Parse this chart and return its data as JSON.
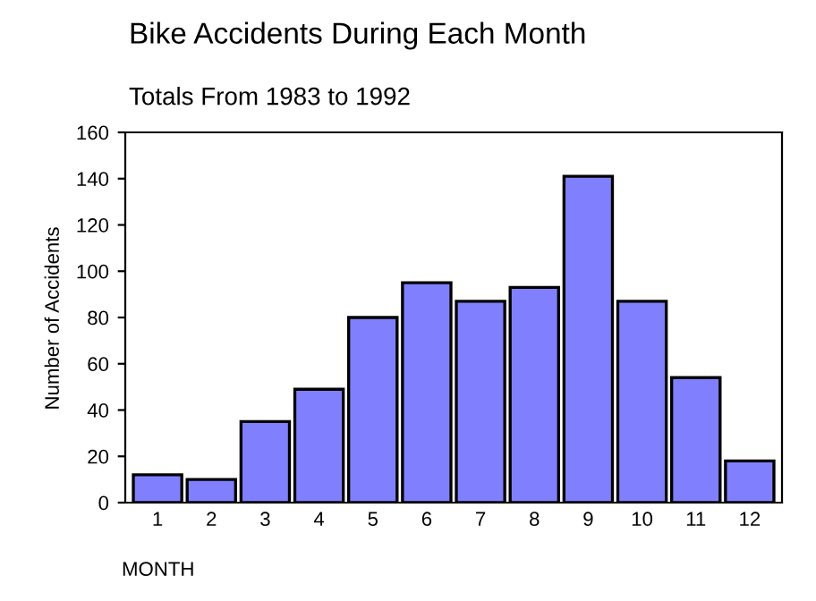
{
  "chart_data": {
    "type": "bar",
    "title": "Bike Accidents During Each Month",
    "subtitle": "Totals From 1983 to 1992",
    "xlabel": "MONTH",
    "ylabel": "Number of Accidents",
    "categories": [
      "1",
      "2",
      "3",
      "4",
      "5",
      "6",
      "7",
      "8",
      "9",
      "10",
      "11",
      "12"
    ],
    "values": [
      12,
      10,
      35,
      49,
      80,
      95,
      87,
      93,
      141,
      87,
      54,
      18
    ],
    "color": "#8080ff",
    "ylim": [
      0,
      160
    ],
    "yticks": [
      0,
      20,
      40,
      60,
      80,
      100,
      120,
      140,
      160
    ],
    "grid": false,
    "legend": false
  }
}
